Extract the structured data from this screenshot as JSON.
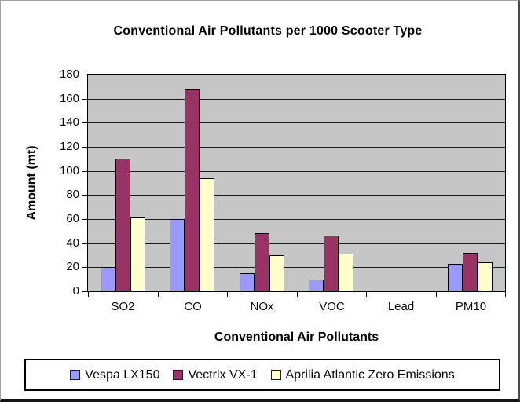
{
  "chart_data": {
    "type": "bar",
    "title": "Conventional Air Pollutants per 1000 Scooter Type",
    "xlabel": "Conventional Air Pollutants",
    "ylabel": "Amount (mt)",
    "categories": [
      "SO2",
      "CO",
      "NOx",
      "VOC",
      "Lead",
      "PM10"
    ],
    "series": [
      {
        "name": "Vespa LX150",
        "color": "#9999FF",
        "values": [
          20,
          60,
          15,
          10,
          0,
          23
        ]
      },
      {
        "name": "Vectrix VX-1",
        "color": "#993366",
        "values": [
          110,
          168,
          48,
          46,
          0,
          32
        ]
      },
      {
        "name": "Aprilia Atlantic Zero Emissions",
        "color": "#FFFFCC",
        "values": [
          61,
          94,
          30,
          31,
          0,
          24
        ]
      }
    ],
    "ylim": [
      0,
      180
    ],
    "ytick_step": 20,
    "yticks": [
      0,
      20,
      40,
      60,
      80,
      100,
      120,
      140,
      160,
      180
    ],
    "grid": true,
    "legend_position": "bottom",
    "plot_background": "#C6C6C6",
    "bar_border_color": "#000000",
    "gridline_color": "#1A1A1A"
  }
}
